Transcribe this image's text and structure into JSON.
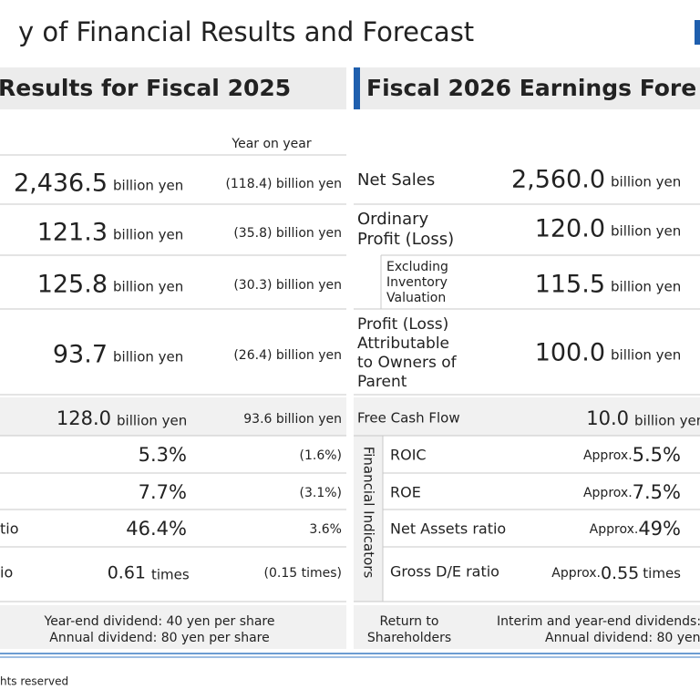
{
  "title": "y of Financial Results and Forecast",
  "left": {
    "heading": "Results for Fiscal 2025",
    "yoy_header": "Year on year",
    "rows": [
      {
        "value": "2,436.5",
        "unit": "billion yen",
        "yoy": "(118.4) billion yen"
      },
      {
        "value": "121.3",
        "unit": "billion yen",
        "yoy": "(35.8) billion yen"
      },
      {
        "value": "125.8",
        "unit": "billion yen",
        "yoy": "(30.3) billion yen"
      },
      {
        "value": "93.7",
        "unit": "billion yen",
        "yoy": "(26.4) billion yen"
      },
      {
        "value": "128.0",
        "unit": "billion yen",
        "yoy": "93.6 billion yen"
      },
      {
        "value": "5.3%",
        "yoy": "(1.6%)"
      },
      {
        "value": "7.7%",
        "yoy": "(3.1%)"
      },
      {
        "label": "tio",
        "value": "46.4%",
        "yoy": "3.6%"
      },
      {
        "label": "io",
        "value": "0.61",
        "unit": "times",
        "yoy": "(0.15 times)"
      }
    ],
    "dividend": [
      "Year-end dividend: 40 yen per share",
      "Annual dividend: 80 yen per share"
    ]
  },
  "right": {
    "heading": "Fiscal 2026 Earnings Fore",
    "indicator_group": "Financial Indicators",
    "rows": [
      {
        "label": [
          "Net Sales"
        ],
        "value": "2,560.0",
        "unit": "billion yen"
      },
      {
        "label": [
          "Ordinary",
          "Profit (Loss)"
        ],
        "value": "120.0",
        "unit": "billion yen"
      },
      {
        "label": [
          "Excluding",
          "Inventory",
          "Valuation"
        ],
        "value": "115.5",
        "unit": "billion yen"
      },
      {
        "label": [
          "Profit (Loss)",
          "Attributable",
          "to Owners of",
          "Parent"
        ],
        "value": "100.0",
        "unit": "billion yen"
      },
      {
        "label": [
          "Free Cash Flow"
        ],
        "value": "10.0",
        "unit": "billion yen"
      },
      {
        "label": [
          "ROIC"
        ],
        "prefix": "Approx.",
        "value": "5.5%"
      },
      {
        "label": [
          "ROE"
        ],
        "prefix": "Approx.",
        "value": "7.5%"
      },
      {
        "label": [
          "Net Assets ratio"
        ],
        "prefix": "Approx.",
        "value": "49%"
      },
      {
        "label": [
          "Gross D/E ratio"
        ],
        "prefix": "Approx.",
        "value": "0.55",
        "unit": "times"
      }
    ],
    "return_label": [
      "Return to",
      "Shareholders"
    ],
    "dividend": [
      "Interim and year-end dividends:",
      "Annual dividend: 80 yen"
    ]
  },
  "footer": "hts reserved"
}
